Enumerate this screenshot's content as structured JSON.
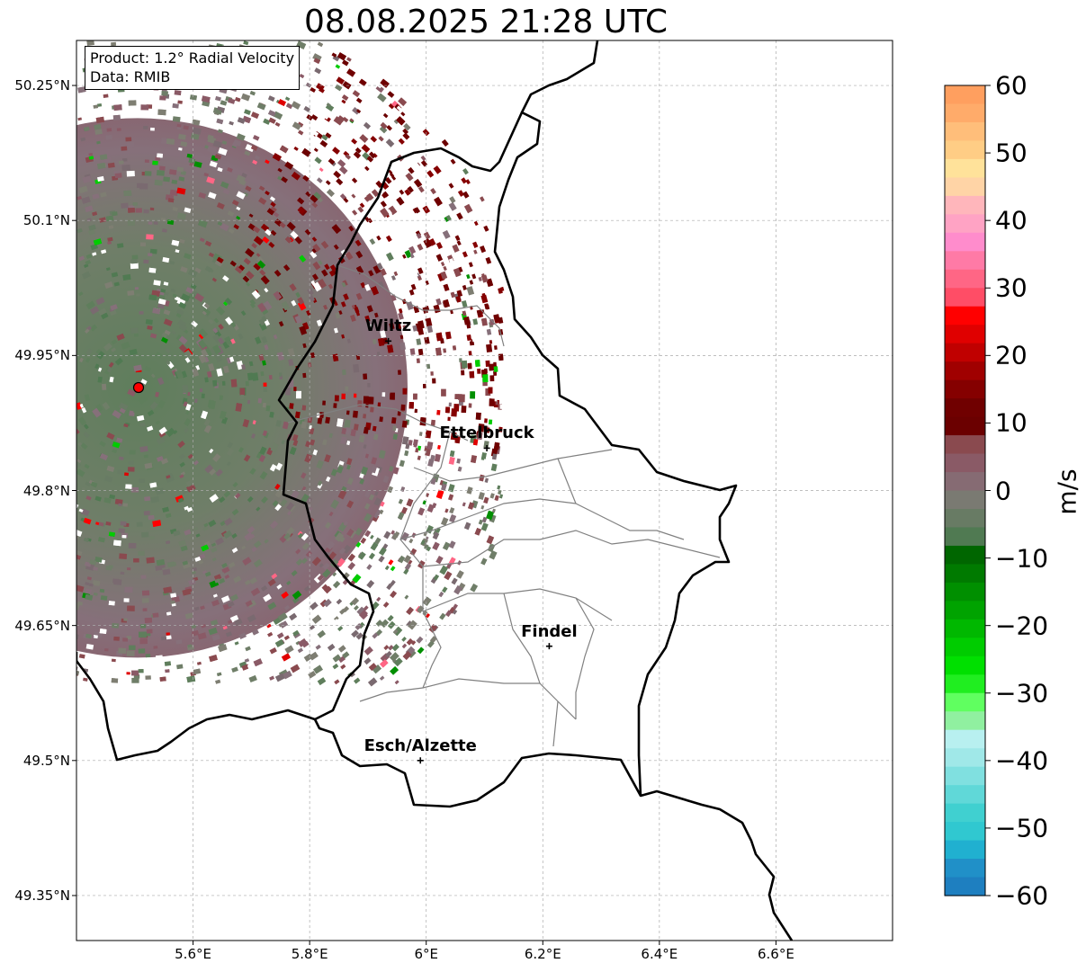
{
  "title": "08.08.2025 21:28 UTC",
  "info_box": {
    "product": "Product: 1.2° Radial Velocity",
    "data": "Data: RMIB"
  },
  "map": {
    "extent": {
      "lon": [
        5.4,
        6.8
      ],
      "lat": [
        49.3,
        50.3
      ]
    },
    "lat_ticks": [
      {
        "value": 50.25,
        "label": "50.25°N"
      },
      {
        "value": 50.1,
        "label": "50.1°N"
      },
      {
        "value": 49.95,
        "label": "49.95°N"
      },
      {
        "value": 49.8,
        "label": "49.8°N"
      },
      {
        "value": 49.65,
        "label": "49.65°N"
      },
      {
        "value": 49.5,
        "label": "49.5°N"
      },
      {
        "value": 49.35,
        "label": "49.35°N"
      }
    ],
    "lon_ticks": [
      {
        "value": 5.6,
        "label": "5.6°E"
      },
      {
        "value": 5.8,
        "label": "5.8°E"
      },
      {
        "value": 6.0,
        "label": "6°E"
      },
      {
        "value": 6.2,
        "label": "6.2°E"
      },
      {
        "value": 6.4,
        "label": "6.4°E"
      },
      {
        "value": 6.6,
        "label": "6.6°E"
      }
    ],
    "grid": true,
    "radar_site": {
      "lon": 5.505,
      "lat": 49.914
    },
    "cities": [
      {
        "name": "Wiltz",
        "lon": 5.935,
        "lat": 49.966
      },
      {
        "name": "Ettelbruck",
        "lon": 6.104,
        "lat": 49.847
      },
      {
        "name": "Findel",
        "lon": 6.211,
        "lat": 49.627
      },
      {
        "name": "Esch/Alzette",
        "lon": 5.99,
        "lat": 49.5
      }
    ],
    "colors": {
      "border": "#000000",
      "canton_lines": "#808080",
      "radar_site": "#ff0000"
    }
  },
  "colorbar": {
    "min": -60,
    "max": 60,
    "step": 5,
    "ticks": [
      "60",
      "50",
      "40",
      "30",
      "20",
      "10",
      "0",
      "−10",
      "−20",
      "−30",
      "−40",
      "−50",
      "−60"
    ],
    "tick_values": [
      60,
      50,
      40,
      30,
      20,
      10,
      0,
      -10,
      -20,
      -30,
      -40,
      -50,
      -60
    ],
    "unit": "m/s",
    "bins_top_to_bottom": [
      "#ff9f5f",
      "#ffab6a",
      "#ffbe7a",
      "#ffcd85",
      "#ffe29a",
      "#ffd4a6",
      "#ffb6bb",
      "#ffa3c4",
      "#ff8ccc",
      "#ff7aa6",
      "#ff6685",
      "#ff4d66",
      "#ff0000",
      "#e00000",
      "#c00000",
      "#a00000",
      "#850000",
      "#700000",
      "#6b0000",
      "#8a4a4f",
      "#8a5a66",
      "#866b73",
      "#7a7a72",
      "#687b64",
      "#507a52",
      "#006600",
      "#007a00",
      "#008f00",
      "#00a300",
      "#00b800",
      "#00cc00",
      "#00e000",
      "#20ee20",
      "#60ff60",
      "#90f0a0",
      "#b8f0f0",
      "#a0e8e8",
      "#80e0e0",
      "#60d8d8",
      "#40d0d0",
      "#30c8d0",
      "#20b0d0",
      "#2090c8",
      "#1e7fc0"
    ]
  },
  "echo_regions": [
    {
      "name": "inner",
      "lon": 5.505,
      "lat": 49.914,
      "radius_px": 280,
      "color": "#7e7e72"
    },
    {
      "name": "green-core",
      "lon": 5.505,
      "lat": 49.914,
      "radius_px": 200,
      "color": "#5f7e5c"
    },
    {
      "name": "outbound-band",
      "lon": 5.505,
      "lat": 49.914,
      "radius_px": 420,
      "color": "#6b0000"
    }
  ]
}
